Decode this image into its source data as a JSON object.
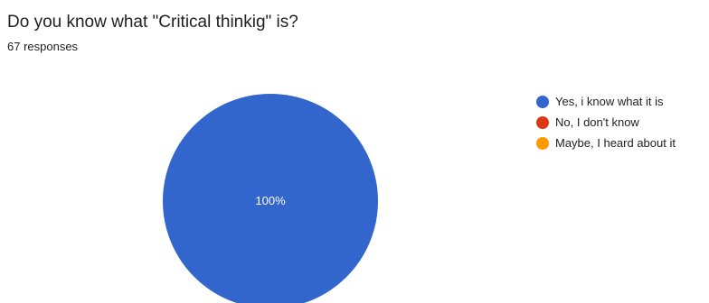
{
  "question": {
    "title": "Do you know what \"Critical thinkig\" is?",
    "responses": "67 responses"
  },
  "chart_data": {
    "type": "pie",
    "categories": [
      "Yes, i know what it is",
      "No, I don't know",
      "Maybe, I heard about it"
    ],
    "values": [
      100,
      0,
      0
    ],
    "colors": [
      "#3366cc",
      "#dc3912",
      "#ff9900"
    ],
    "slice_labels": [
      "100%",
      "",
      ""
    ],
    "legend_position": "right"
  }
}
